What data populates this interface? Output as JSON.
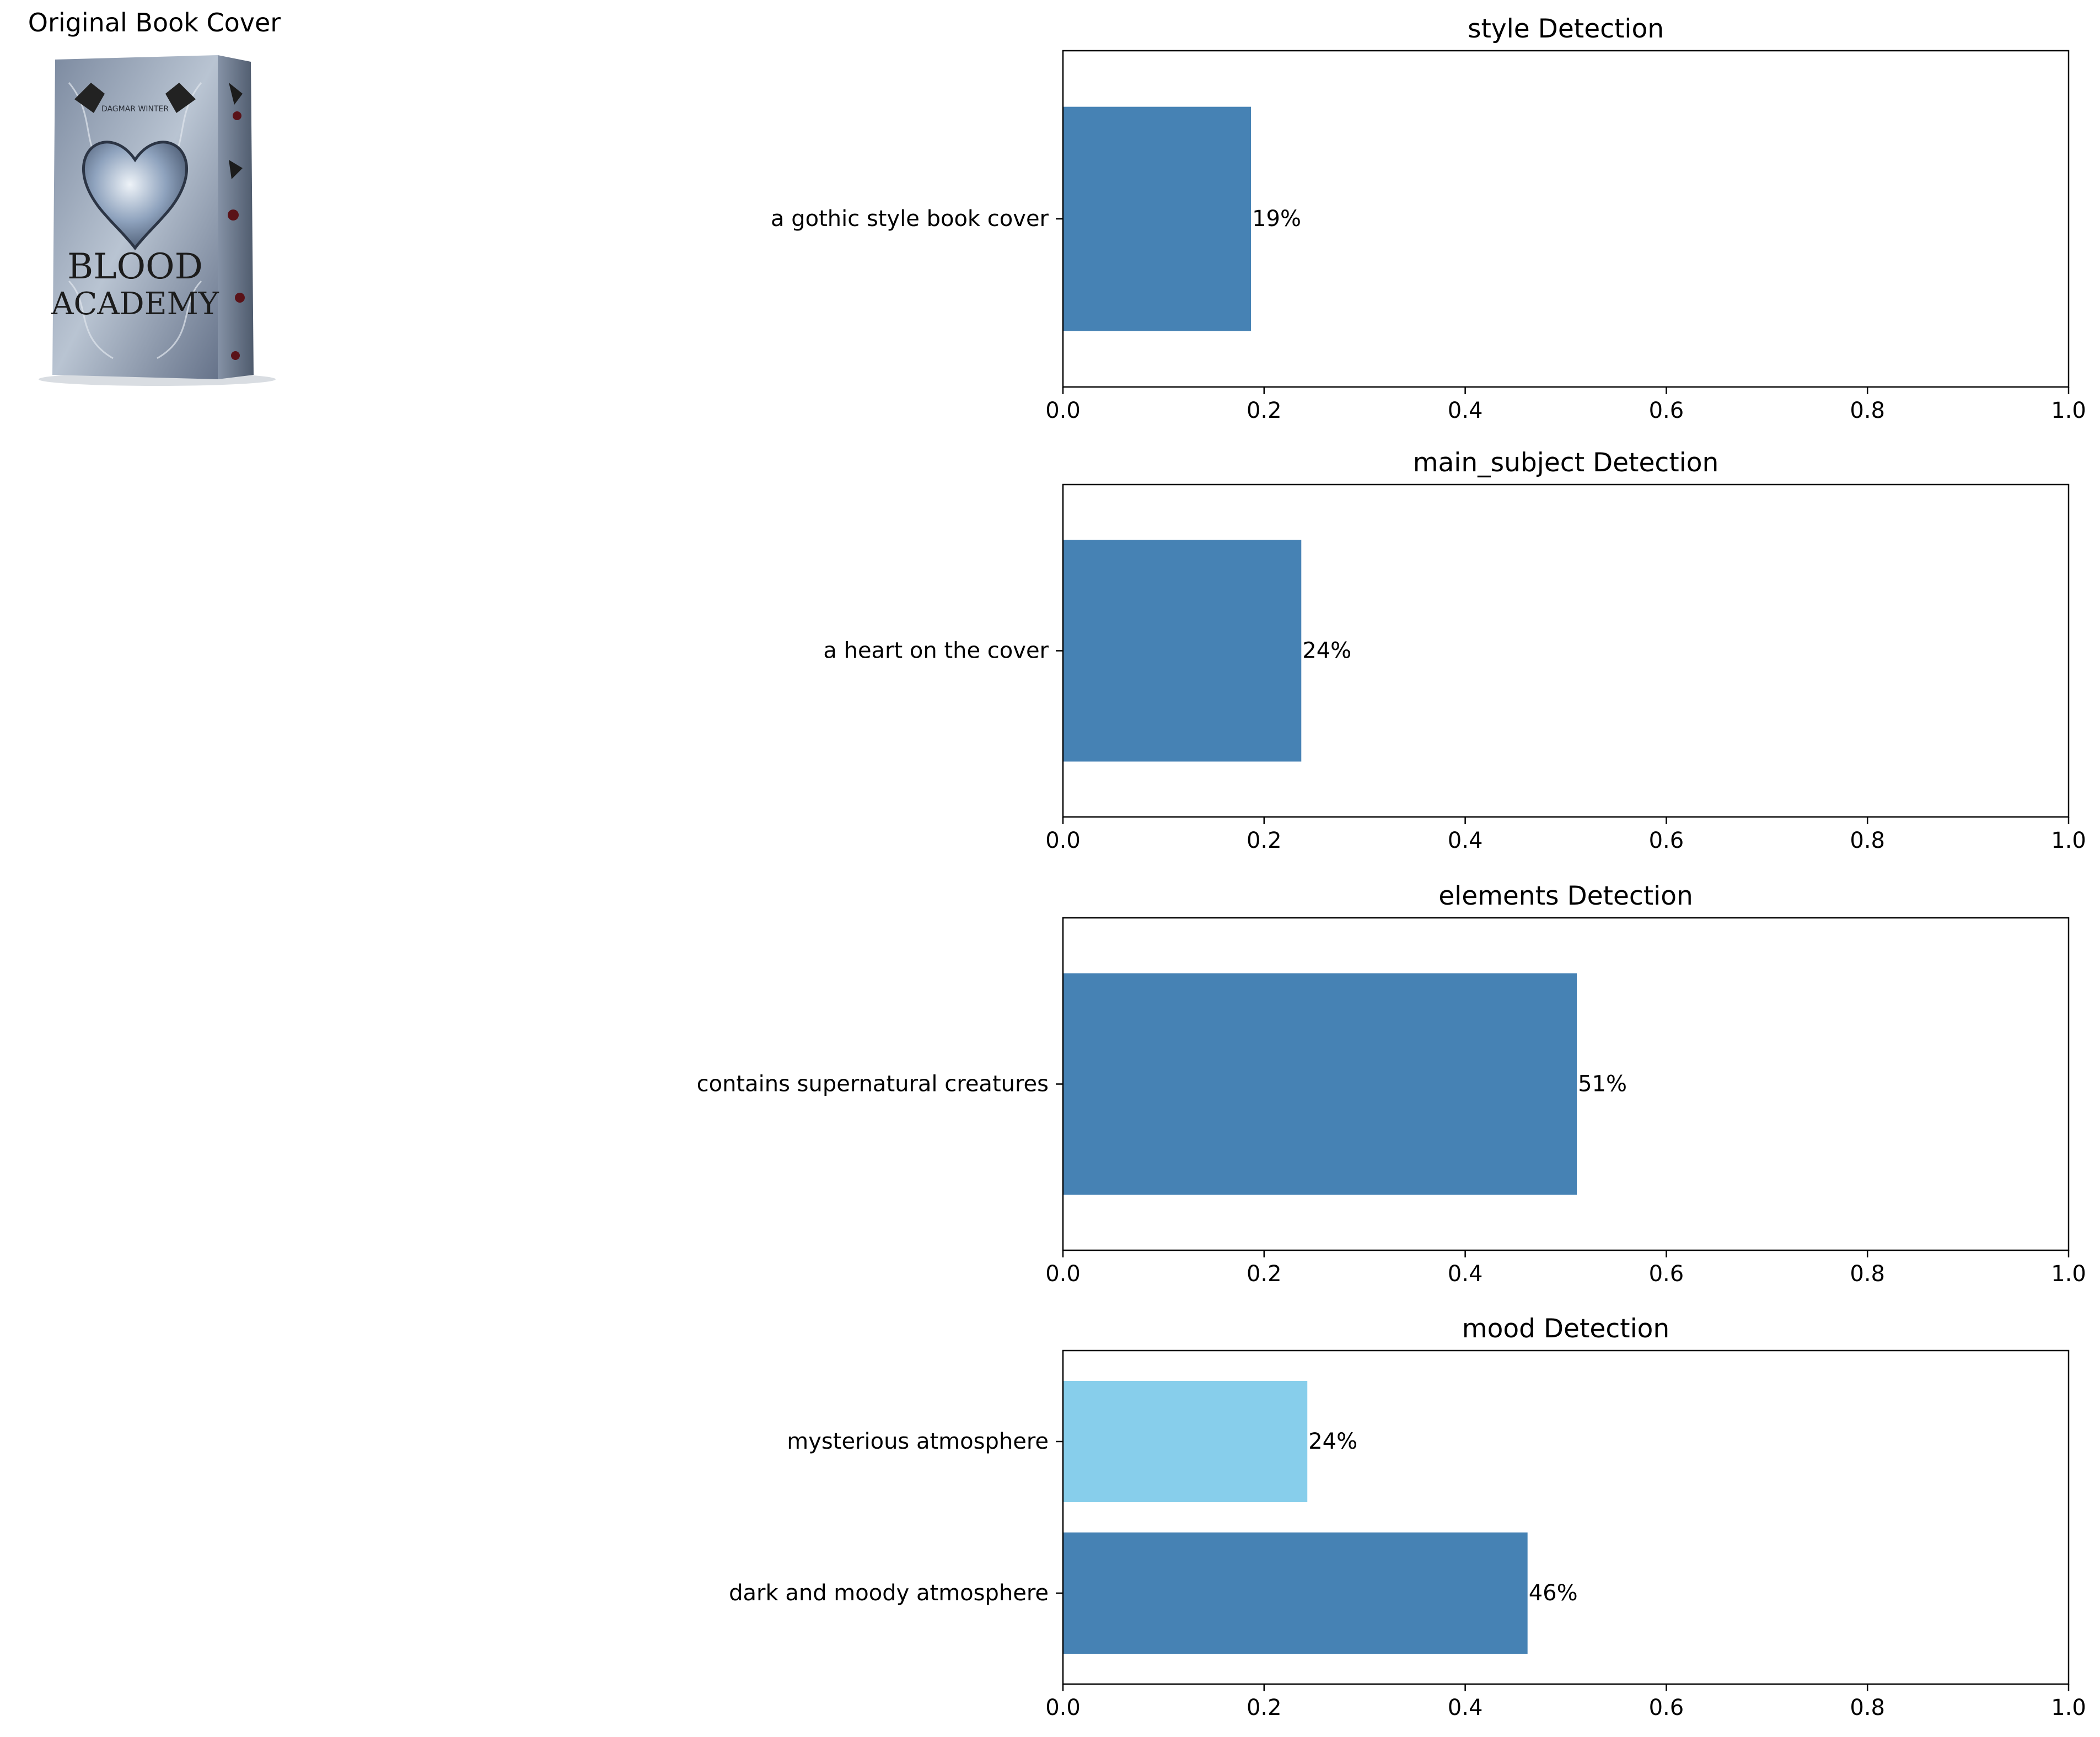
{
  "cover": {
    "title": "Original Book Cover",
    "image_text": [
      "BLOOD",
      "ACADEMY",
      "DAGMAR WINTER"
    ]
  },
  "colors": {
    "primary": "#4682B4",
    "secondary": "#87CEEB",
    "axis": "#000000"
  },
  "chart_data": [
    {
      "type": "bar",
      "orientation": "horizontal",
      "title": "style Detection",
      "categories": [
        "a gothic style book cover"
      ],
      "values": [
        0.187
      ],
      "data_labels": [
        "19%"
      ],
      "xlim": [
        0,
        1
      ],
      "xticks": [
        "0.0",
        "0.2",
        "0.4",
        "0.6",
        "0.8",
        "1.0"
      ],
      "grid": false
    },
    {
      "type": "bar",
      "orientation": "horizontal",
      "title": "main_subject Detection",
      "categories": [
        "a heart on the cover"
      ],
      "values": [
        0.237
      ],
      "data_labels": [
        "24%"
      ],
      "xlim": [
        0,
        1
      ],
      "xticks": [
        "0.0",
        "0.2",
        "0.4",
        "0.6",
        "0.8",
        "1.0"
      ],
      "grid": false
    },
    {
      "type": "bar",
      "orientation": "horizontal",
      "title": "elements Detection",
      "categories": [
        "contains supernatural creatures"
      ],
      "values": [
        0.511
      ],
      "data_labels": [
        "51%"
      ],
      "xlim": [
        0,
        1
      ],
      "xticks": [
        "0.0",
        "0.2",
        "0.4",
        "0.6",
        "0.8",
        "1.0"
      ],
      "grid": false
    },
    {
      "type": "bar",
      "orientation": "horizontal",
      "title": "mood Detection",
      "categories": [
        "dark and moody atmosphere",
        "mysterious atmosphere"
      ],
      "values": [
        0.462,
        0.243
      ],
      "data_labels": [
        "46%",
        "24%"
      ],
      "bar_colors": [
        "#4682B4",
        "#87CEEB"
      ],
      "xlim": [
        0,
        1
      ],
      "xticks": [
        "0.0",
        "0.2",
        "0.4",
        "0.6",
        "0.8",
        "1.0"
      ],
      "grid": false
    }
  ]
}
